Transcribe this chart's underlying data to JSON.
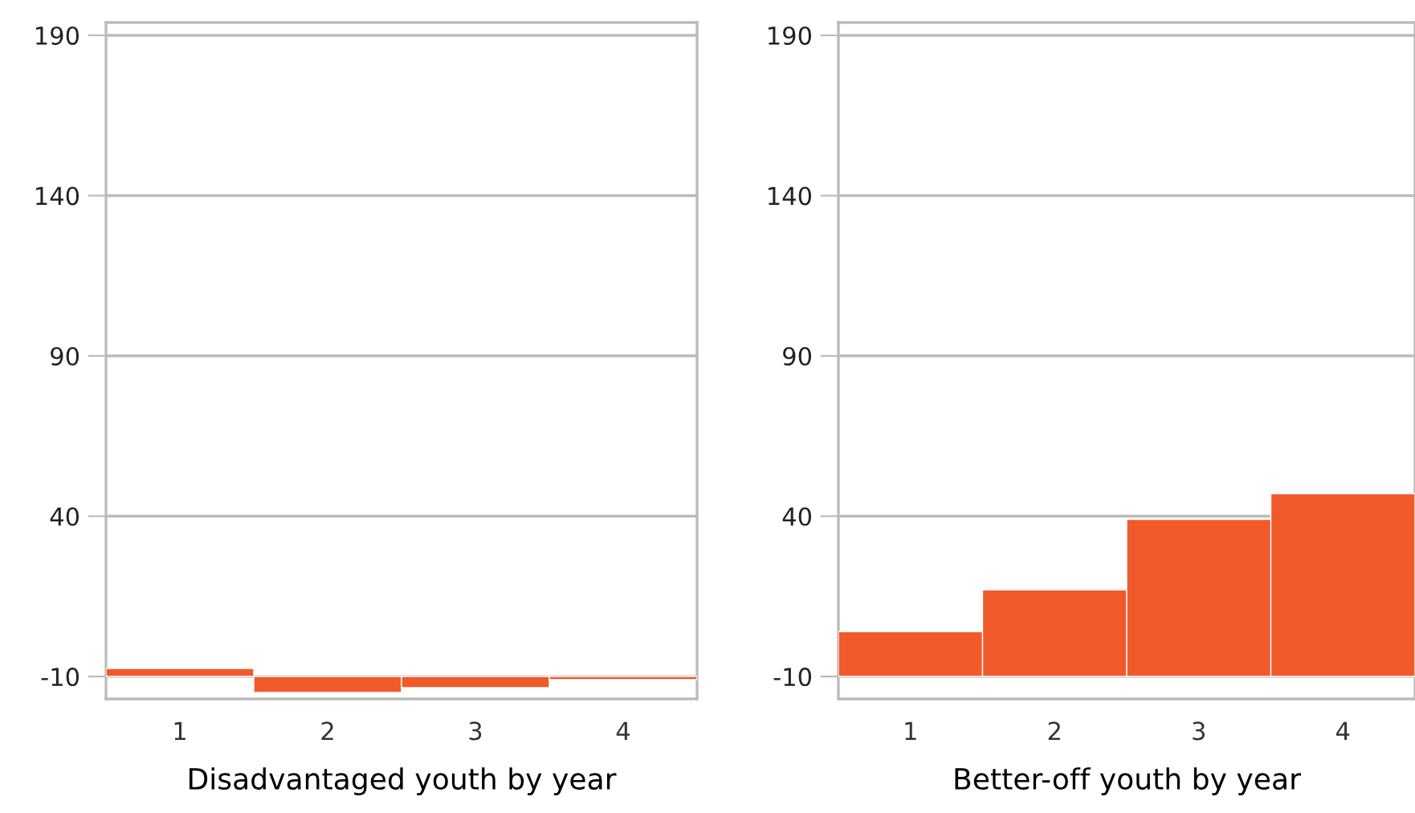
{
  "chart_data": [
    {
      "type": "bar",
      "xlabel": "Disadvantaged youth by year",
      "categories": [
        "1",
        "2",
        "3",
        "4"
      ],
      "base": [
        -10,
        -10,
        -10,
        -10
      ],
      "values": [
        2.5,
        -5,
        -3.5,
        -1
      ],
      "color": "#f05a2a",
      "ylim": [
        -17,
        194
      ],
      "yticks": [
        -10,
        40,
        90,
        140,
        190
      ],
      "grid": "y"
    },
    {
      "type": "bar",
      "xlabel": "Better-off youth by year",
      "categories": [
        "1",
        "2",
        "3",
        "4"
      ],
      "base": [
        -10,
        -10,
        -10,
        -10
      ],
      "values": [
        14,
        27,
        49,
        57
      ],
      "color": "#f05a2a",
      "ylim": [
        -17,
        194
      ],
      "yticks": [
        -10,
        40,
        90,
        140,
        190
      ],
      "grid": "y"
    }
  ]
}
